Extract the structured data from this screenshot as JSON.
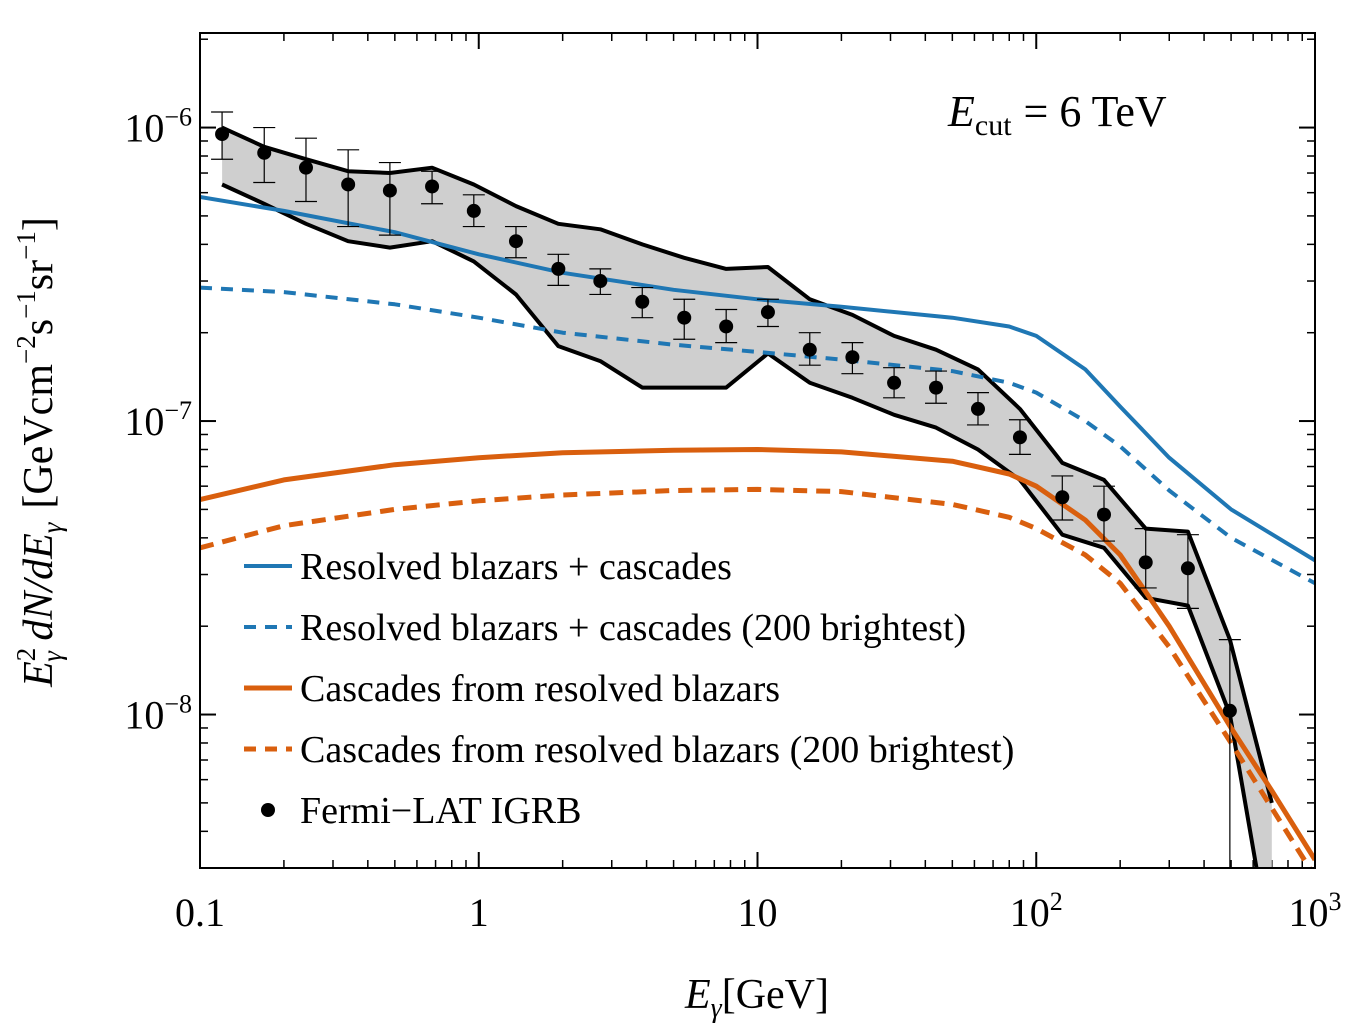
{
  "chart_data": {
    "type": "line",
    "xscale": "log",
    "yscale": "log",
    "xlim": [
      0.1,
      1000
    ],
    "ylim": [
      3e-09,
      2.1e-06
    ],
    "annotation": {
      "lhs": "E",
      "sub": "cut",
      "rhs": "= 6 TeV"
    },
    "xlabel": {
      "main": "E",
      "sub": "γ",
      "unit": "[GeV]"
    },
    "ylabel": {
      "lhs": "E",
      "sup": "2",
      "sub": "γ",
      "mid": " dN/dE",
      "sub2": "γ",
      "unit": "[GeVcm",
      "e1": "−2",
      "s": "s",
      "e2": "−1",
      "sr": "sr",
      "e3": "−1",
      "close": "]"
    },
    "x_ticks": [
      {
        "value": 0.1,
        "label": "0.1"
      },
      {
        "value": 1,
        "label": "1"
      },
      {
        "value": 10,
        "label": "10"
      },
      {
        "value": 100,
        "label": "10",
        "exp": "2"
      },
      {
        "value": 1000,
        "label": "10",
        "exp": "3"
      }
    ],
    "y_ticks": [
      {
        "value": 1e-06,
        "base": "10",
        "exp": "−6"
      },
      {
        "value": 1e-07,
        "base": "10",
        "exp": "−7"
      },
      {
        "value": 1e-08,
        "base": "10",
        "exp": "−8"
      }
    ],
    "series": [
      {
        "name": "Resolved blazars + cascades",
        "color": "#1f77b4",
        "style": "solid",
        "x": [
          0.1,
          0.2,
          0.5,
          1,
          2,
          5,
          10,
          20,
          50,
          80,
          100,
          150,
          200,
          300,
          500,
          1000
        ],
        "y": [
          5.8e-07,
          5.2e-07,
          4.4e-07,
          3.7e-07,
          3.2e-07,
          2.8e-07,
          2.6e-07,
          2.45e-07,
          2.25e-07,
          2.1e-07,
          1.95e-07,
          1.5e-07,
          1.12e-07,
          7.5e-08,
          5e-08,
          3.35e-08
        ]
      },
      {
        "name": "Resolved blazars + cascades (200 brightest)",
        "color": "#1f77b4",
        "style": "dashed",
        "x": [
          0.1,
          0.2,
          0.5,
          1,
          2,
          5,
          10,
          20,
          50,
          80,
          100,
          150,
          200,
          300,
          500,
          1000
        ],
        "y": [
          2.85e-07,
          2.75e-07,
          2.5e-07,
          2.25e-07,
          2e-07,
          1.82e-07,
          1.72e-07,
          1.62e-07,
          1.48e-07,
          1.35e-07,
          1.25e-07,
          1e-07,
          8.2e-08,
          5.8e-08,
          4e-08,
          2.8e-08
        ]
      },
      {
        "name": "Cascades from resolved blazars",
        "color": "#d95f0e",
        "style": "solid",
        "x": [
          0.1,
          0.2,
          0.5,
          1,
          2,
          5,
          10,
          20,
          50,
          80,
          100,
          150,
          200,
          300,
          500,
          700,
          1000
        ],
        "y": [
          5.4e-08,
          6.3e-08,
          7.1e-08,
          7.5e-08,
          7.8e-08,
          7.95e-08,
          8e-08,
          7.85e-08,
          7.3e-08,
          6.6e-08,
          6e-08,
          4.6e-08,
          3.5e-08,
          2e-08,
          9e-09,
          5.5e-09,
          3.2e-09
        ]
      },
      {
        "name": "Cascades from resolved blazars (200 brightest)",
        "color": "#d95f0e",
        "style": "dashed",
        "x": [
          0.1,
          0.2,
          0.5,
          1,
          2,
          5,
          10,
          20,
          50,
          80,
          100,
          150,
          200,
          300,
          500,
          700,
          1000
        ],
        "y": [
          3.7e-08,
          4.4e-08,
          5e-08,
          5.35e-08,
          5.6e-08,
          5.8e-08,
          5.85e-08,
          5.75e-08,
          5.2e-08,
          4.7e-08,
          4.3e-08,
          3.5e-08,
          2.8e-08,
          1.7e-08,
          8e-09,
          4.8e-09,
          2.8e-09
        ]
      }
    ],
    "band": {
      "name": "Fermi-LAT IGRB systematic band",
      "x": [
        0.12,
        0.17,
        0.24,
        0.34,
        0.48,
        0.68,
        0.96,
        1.36,
        1.93,
        2.73,
        3.86,
        5.46,
        7.72,
        10.9,
        15.4,
        21.9,
        30.9,
        43.7,
        61.8,
        87.4,
        124,
        175,
        247,
        350,
        495,
        700
      ],
      "upper": [
        1e-06,
        8.6e-07,
        7.8e-07,
        7.1e-07,
        7e-07,
        7.3e-07,
        6.4e-07,
        5.4e-07,
        4.7e-07,
        4.5e-07,
        4e-07,
        3.6e-07,
        3.3e-07,
        3.35e-07,
        2.6e-07,
        2.3e-07,
        1.95e-07,
        1.75e-07,
        1.5e-07,
        1.1e-07,
        7.2e-08,
        6.3e-08,
        4.3e-08,
        4.2e-08,
        1.8e-08,
        5e-09
      ],
      "lower": [
        6.4e-07,
        5.5e-07,
        4.7e-07,
        4.1e-07,
        3.9e-07,
        4.1e-07,
        3.5e-07,
        2.7e-07,
        1.8e-07,
        1.6e-07,
        1.3e-07,
        1.3e-07,
        1.3e-07,
        1.7e-07,
        1.35e-07,
        1.2e-07,
        1.05e-07,
        9.5e-08,
        8e-08,
        6.3e-08,
        4.1e-08,
        3.7e-08,
        2.5e-08,
        2.35e-08,
        1e-08,
        1.5e-09
      ]
    },
    "points": {
      "name": "Fermi–LAT IGRB",
      "color": "#000000",
      "x": [
        0.12,
        0.17,
        0.24,
        0.34,
        0.48,
        0.68,
        0.96,
        1.36,
        1.93,
        2.73,
        3.86,
        5.46,
        7.72,
        10.9,
        15.4,
        21.9,
        30.9,
        43.7,
        61.8,
        87.4,
        124,
        175,
        247,
        350,
        495
      ],
      "y": [
        9.5e-07,
        8.2e-07,
        7.3e-07,
        6.4e-07,
        6.1e-07,
        6.3e-07,
        5.2e-07,
        4.1e-07,
        3.3e-07,
        3e-07,
        2.55e-07,
        2.25e-07,
        2.1e-07,
        2.35e-07,
        1.75e-07,
        1.65e-07,
        1.35e-07,
        1.3e-07,
        1.1e-07,
        8.8e-08,
        5.5e-08,
        4.8e-08,
        3.3e-08,
        3.15e-08,
        1.03e-08
      ],
      "err_hi": [
        1.13e-06,
        1e-06,
        9.2e-07,
        8.4e-07,
        7.6e-07,
        7.1e-07,
        5.9e-07,
        4.6e-07,
        3.7e-07,
        3.3e-07,
        2.85e-07,
        2.6e-07,
        2.4e-07,
        2.6e-07,
        2e-07,
        1.85e-07,
        1.52e-07,
        1.48e-07,
        1.25e-07,
        1.01e-07,
        6.5e-08,
        6e-08,
        4.3e-08,
        4.1e-08,
        1.8e-08
      ],
      "err_lo": [
        7.8e-07,
        6.5e-07,
        5.6e-07,
        4.6e-07,
        4.3e-07,
        5.5e-07,
        4.6e-07,
        3.6e-07,
        2.9e-07,
        2.7e-07,
        2.25e-07,
        1.9e-07,
        1.85e-07,
        2.1e-07,
        1.55e-07,
        1.45e-07,
        1.2e-07,
        1.15e-07,
        9.7e-08,
        7.7e-08,
        4.6e-08,
        3.9e-08,
        2.7e-08,
        2.3e-08,
        3e-09
      ]
    },
    "legend": {
      "placement": "lower-left",
      "items": [
        {
          "label": "Resolved blazars + cascades",
          "color": "#1f77b4",
          "style": "solid"
        },
        {
          "label": "Resolved blazars + cascades (200 brightest)",
          "color": "#1f77b4",
          "style": "dashed"
        },
        {
          "label": "Cascades from resolved blazars",
          "color": "#d95f0e",
          "style": "solid"
        },
        {
          "label": "Cascades from resolved blazars (200 brightest)",
          "color": "#d95f0e",
          "style": "dashed"
        },
        {
          "label": "Fermi−LAT IGRB",
          "color": "#000000",
          "style": "marker"
        }
      ]
    }
  }
}
